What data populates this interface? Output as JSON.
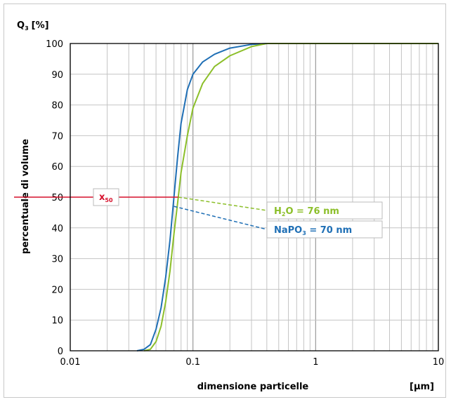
{
  "chart_data": {
    "type": "line",
    "x_scale": "log",
    "xlim": [
      0.01,
      10
    ],
    "ylim": [
      0,
      100
    ],
    "grid": true,
    "yticks": [
      0,
      10,
      20,
      30,
      40,
      50,
      60,
      70,
      80,
      90,
      100
    ],
    "xtick_labels": [
      {
        "value": 0.01,
        "label": "0.01"
      },
      {
        "value": 0.1,
        "label": "0.1"
      },
      {
        "value": 1,
        "label": "1"
      },
      {
        "value": 10,
        "label": "10"
      }
    ],
    "ylabel_top_main": "Q",
    "ylabel_top_sub": "3",
    "ylabel_top_unit": "[%]",
    "ylabel": "percentuale di volume",
    "xlabel": "dimensione particelle",
    "xunit": "[µm]",
    "series": [
      {
        "color": "#1f6fb5",
        "x": [
          0.035,
          0.04,
          0.045,
          0.05,
          0.055,
          0.06,
          0.065,
          0.07,
          0.075,
          0.08,
          0.09,
          0.1,
          0.12,
          0.15,
          0.2,
          0.3,
          0.4,
          1,
          10
        ],
        "y": [
          0,
          0.5,
          2,
          7,
          14,
          24,
          36,
          50,
          63,
          74,
          85,
          90,
          94,
          96.5,
          98.5,
          99.7,
          100,
          100,
          100
        ]
      },
      {
        "color": "#8cbf2a",
        "x": [
          0.04,
          0.045,
          0.05,
          0.055,
          0.06,
          0.065,
          0.07,
          0.076,
          0.08,
          0.09,
          0.1,
          0.12,
          0.15,
          0.2,
          0.3,
          0.4,
          1,
          10
        ],
        "y": [
          0,
          0.5,
          3,
          8,
          16,
          26,
          38,
          50,
          58,
          70,
          79,
          87,
          92.5,
          96,
          99,
          100,
          100,
          100
        ]
      }
    ],
    "x50": {
      "label_main": "x",
      "label_sub": "50",
      "y": 50,
      "color": "#d6112c"
    },
    "annotations": [
      {
        "point_x": 0.076,
        "point_y": 50,
        "label_prefix": "H",
        "label_sub": "2",
        "label_suffix": "O = 76 nm",
        "color": "#8cbf2a"
      },
      {
        "point_x": 0.07,
        "point_y": 47,
        "label_prefix": "NaPO",
        "label_sub": "3",
        "label_suffix": " = 70 nm",
        "color": "#1f6fb5"
      }
    ]
  }
}
